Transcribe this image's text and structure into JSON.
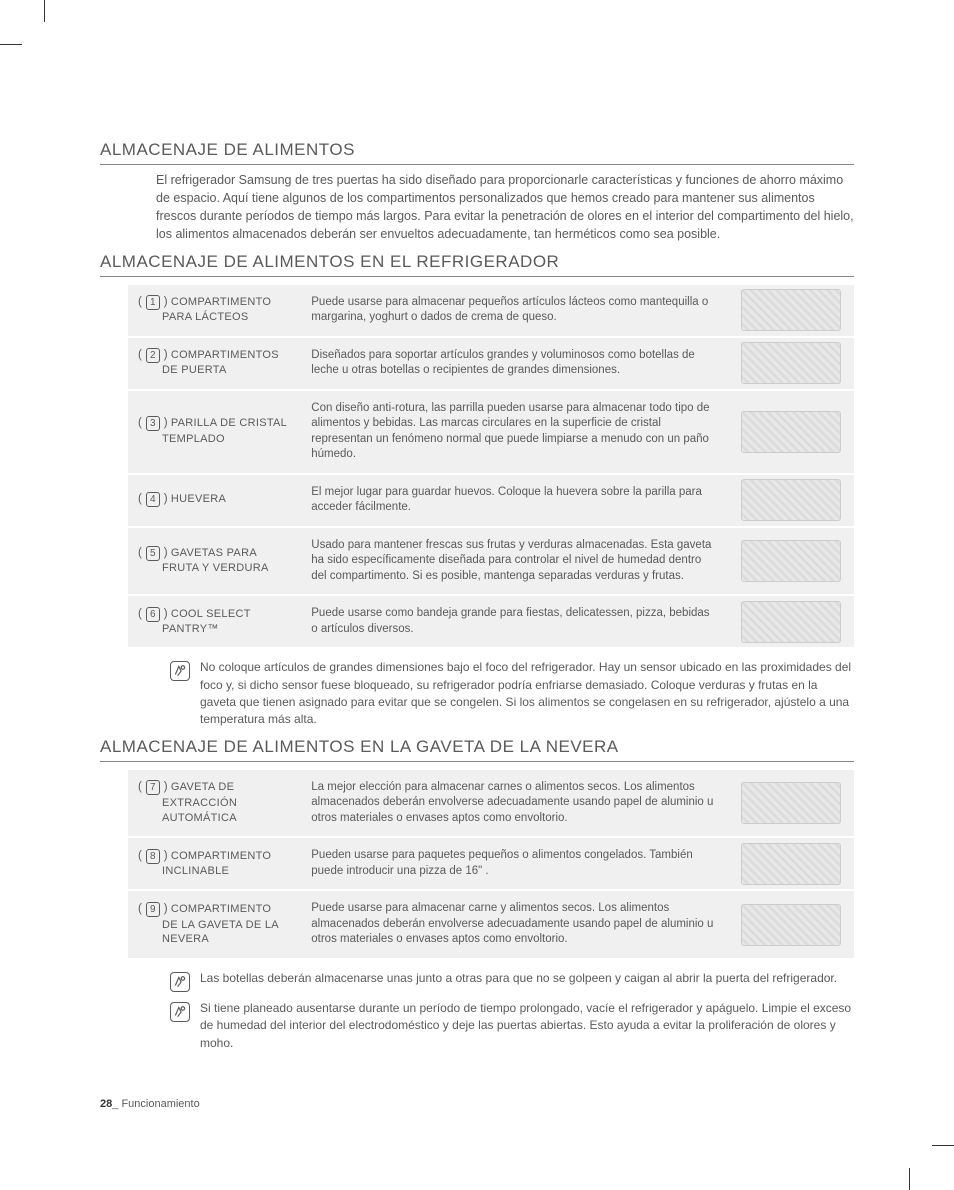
{
  "sections": {
    "s1": {
      "heading": "ALMACENAJE DE ALIMENTOS",
      "intro": "El refrigerador Samsung de tres puertas ha sido diseñado para proporcionarle características y funciones de ahorro máximo de espacio. Aquí tiene algunos de los compartimentos personalizados que hemos creado para mantener sus alimentos frescos durante períodos de tiempo más largos. Para evitar la penetración de olores en el interior del compartimento del hielo, los alimentos almacenados deberán ser envueltos adecuadamente, tan herméticos como sea posible."
    },
    "s2": {
      "heading": "ALMACENAJE DE ALIMENTOS EN EL REFRIGERADOR"
    },
    "s3": {
      "heading": "ALMACENAJE DE ALIMENTOS EN LA GAVETA DE LA NEVERA"
    }
  },
  "rows1": [
    {
      "num": "1",
      "name_first": "COMPARTIMENTO",
      "name_rest": "PARA LÁCTEOS",
      "desc": "Puede usarse para almacenar pequeños artículos lácteos como mantequilla o margarina, yoghurt o dados de crema de queso."
    },
    {
      "num": "2",
      "name_first": "COMPARTIMENTOS",
      "name_rest": "DE PUERTA",
      "desc": "Diseñados para soportar artículos grandes y voluminosos como botellas de leche u otras botellas o recipientes de grandes dimensiones."
    },
    {
      "num": "3",
      "name_first": "PARILLA DE CRISTAL",
      "name_rest": "TEMPLADO",
      "desc": "Con diseño anti-rotura, las parrilla pueden usarse para almacenar todo tipo de alimentos y bebidas. Las marcas circulares en la superficie de cristal representan un fenómeno normal que puede limpiarse a menudo con un paño húmedo."
    },
    {
      "num": "4",
      "name_first": "HUEVERA",
      "name_rest": "",
      "desc": "El mejor lugar para guardar huevos.\nColoque la huevera sobre la parilla para acceder fácilmente."
    },
    {
      "num": "5",
      "name_first": "GAVETAS PARA",
      "name_rest": "FRUTA Y VERDURA",
      "desc": "Usado para mantener frescas sus frutas y verduras almacenadas. Esta gaveta ha sido específicamente diseñada para controlar el nivel de humedad dentro del compartimento. Si es posible, mantenga separadas verduras y frutas."
    },
    {
      "num": "6",
      "name_first": "COOL SELECT",
      "name_rest": "PANTRY™",
      "desc": "Puede usarse como bandeja grande para fiestas, delicatessen, pizza, bebidas o artículos diversos."
    }
  ],
  "note1": "No coloque artículos de grandes dimensiones bajo el foco del refrigerador. Hay un sensor ubicado en las proximidades del foco y, si dicho sensor fuese bloqueado, su refrigerador podría enfriarse demasiado. Coloque verduras y frutas en la gaveta que tienen asignado para evitar que se congelen. Si los alimentos se congelasen en su refrigerador, ajústelo a una temperatura más alta.",
  "rows2": [
    {
      "num": "7",
      "name_first": "GAVETA DE",
      "name_rest": "EXTRACCIÓN AUTOMÁTICA",
      "desc": "La mejor elección para almacenar carnes o alimentos secos. Los alimentos almacenados deberán envolverse adecuadamente usando papel de aluminio u otros materiales o envases aptos como envoltorio."
    },
    {
      "num": "8",
      "name_first": "COMPARTIMENTO",
      "name_rest": "INCLINABLE",
      "desc": "Pueden usarse para paquetes pequeños o alimentos congelados. También puede introducir una pizza de 16\" ."
    },
    {
      "num": "9",
      "name_first": "COMPARTIMENTO",
      "name_rest": "DE LA GAVETA DE LA NEVERA",
      "desc": "Puede usarse para almacenar carne y alimentos secos. Los alimentos almacenados deberán envolverse adecuadamente usando papel de aluminio u otros materiales o envases aptos como envoltorio."
    }
  ],
  "note2": "Las botellas deberán almacenarse unas junto a otras para que no se golpeen y caigan al abrir la puerta del refrigerador.",
  "note3": "Si tiene planeado ausentarse durante un período de tiempo prolongado, vacíe el refrigerador y apáguelo. Limpie el exceso de humedad del interior del electrodoméstico y deje las puertas abiertas. Esto ayuda a evitar la proliferación de olores y moho.",
  "footer": {
    "page": "28",
    "sep": "_",
    "section": "Funcionamiento"
  },
  "colors": {
    "text": "#5a5a5a",
    "row_bg": "#f0f0f0",
    "rule": "#888888",
    "page_bg": "#ffffff"
  },
  "fonts": {
    "body_pt": 12,
    "heading_pt": 17,
    "table_pt": 11
  }
}
